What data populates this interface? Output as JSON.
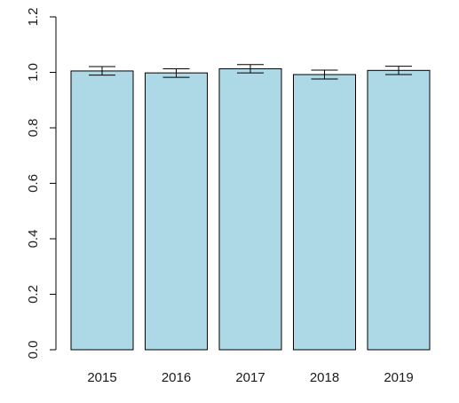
{
  "chart_data": {
    "type": "bar",
    "title": "",
    "xlabel": "",
    "ylabel": "",
    "categories": [
      "2015",
      "2016",
      "2017",
      "2018",
      "2019"
    ],
    "series": [
      {
        "values": [
          1.005,
          0.998,
          1.013,
          0.992,
          1.007
        ],
        "error_low": [
          0.99,
          0.982,
          0.998,
          0.976,
          0.992
        ],
        "error_high": [
          1.021,
          1.013,
          1.028,
          1.008,
          1.022
        ]
      }
    ],
    "ylim": [
      0,
      1.2
    ],
    "yticks": [
      0.0,
      0.2,
      0.4,
      0.6,
      0.8,
      1.0,
      1.2
    ],
    "ytick_labels": [
      "0.0",
      "0.2",
      "0.4",
      "0.6",
      "0.8",
      "1.0",
      "1.2"
    ],
    "bar_color": "#add8e6",
    "grid": false,
    "legend": "none"
  }
}
